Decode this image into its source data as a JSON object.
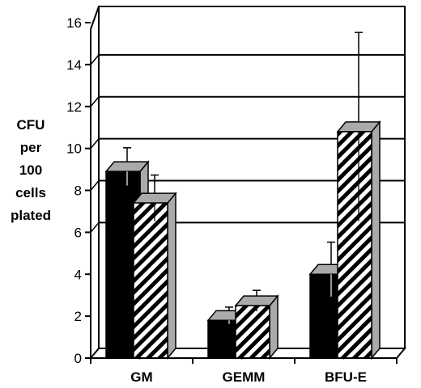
{
  "chart_data": {
    "type": "bar",
    "title": "",
    "ylabel_lines": [
      "CFU",
      "per",
      "100",
      "cells",
      "plated"
    ],
    "xlabel": "",
    "categories": [
      "GM",
      "GEMM",
      "BFU-E"
    ],
    "series": [
      {
        "values": [
          8.9,
          1.8,
          4.0
        ],
        "errors": [
          0.9,
          0.4,
          1.3
        ],
        "fill": "solid"
      },
      {
        "values": [
          7.4,
          2.5,
          10.8
        ],
        "errors": [
          1.1,
          0.5,
          4.5
        ],
        "fill": "hatched"
      }
    ],
    "ylim": [
      0,
      16
    ],
    "yticks": [
      0,
      2,
      4,
      6,
      8,
      10,
      12,
      14,
      16
    ],
    "gridlines": [
      6,
      8,
      10,
      12,
      14
    ],
    "grid": true,
    "style": "3d-bars",
    "colors": {
      "solid": "#000000",
      "side": "#aaaaaa",
      "hatch": "#000000",
      "background": "#ffffff"
    }
  }
}
